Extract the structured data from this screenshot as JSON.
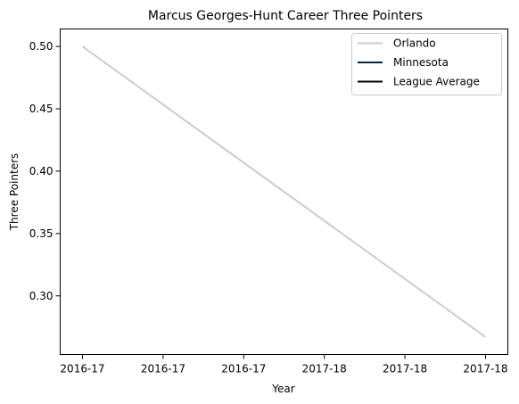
{
  "chart_data": {
    "type": "line",
    "title": "Marcus Georges-Hunt Career Three Pointers",
    "xlabel": "Year",
    "ylabel": "Three Pointers",
    "x": [
      "2016-17",
      "2016-17",
      "2016-17",
      "2017-18",
      "2017-18",
      "2017-18"
    ],
    "ylim": [
      0.253,
      0.514
    ],
    "yticks": [
      "0.30",
      "0.35",
      "0.40",
      "0.45",
      "0.50"
    ],
    "ytick_values": [
      0.3,
      0.35,
      0.4,
      0.45,
      0.5
    ],
    "grid": false,
    "legend_position": "top-right",
    "series": [
      {
        "name": "Orlando",
        "color": "#c4ced4",
        "points": [
          [
            0,
            0.5
          ],
          [
            5,
            0.267
          ]
        ]
      },
      {
        "name": "Minnesota",
        "color": "#0c2340",
        "points": []
      },
      {
        "name": "League Average",
        "color": "#000000",
        "points": []
      }
    ]
  }
}
